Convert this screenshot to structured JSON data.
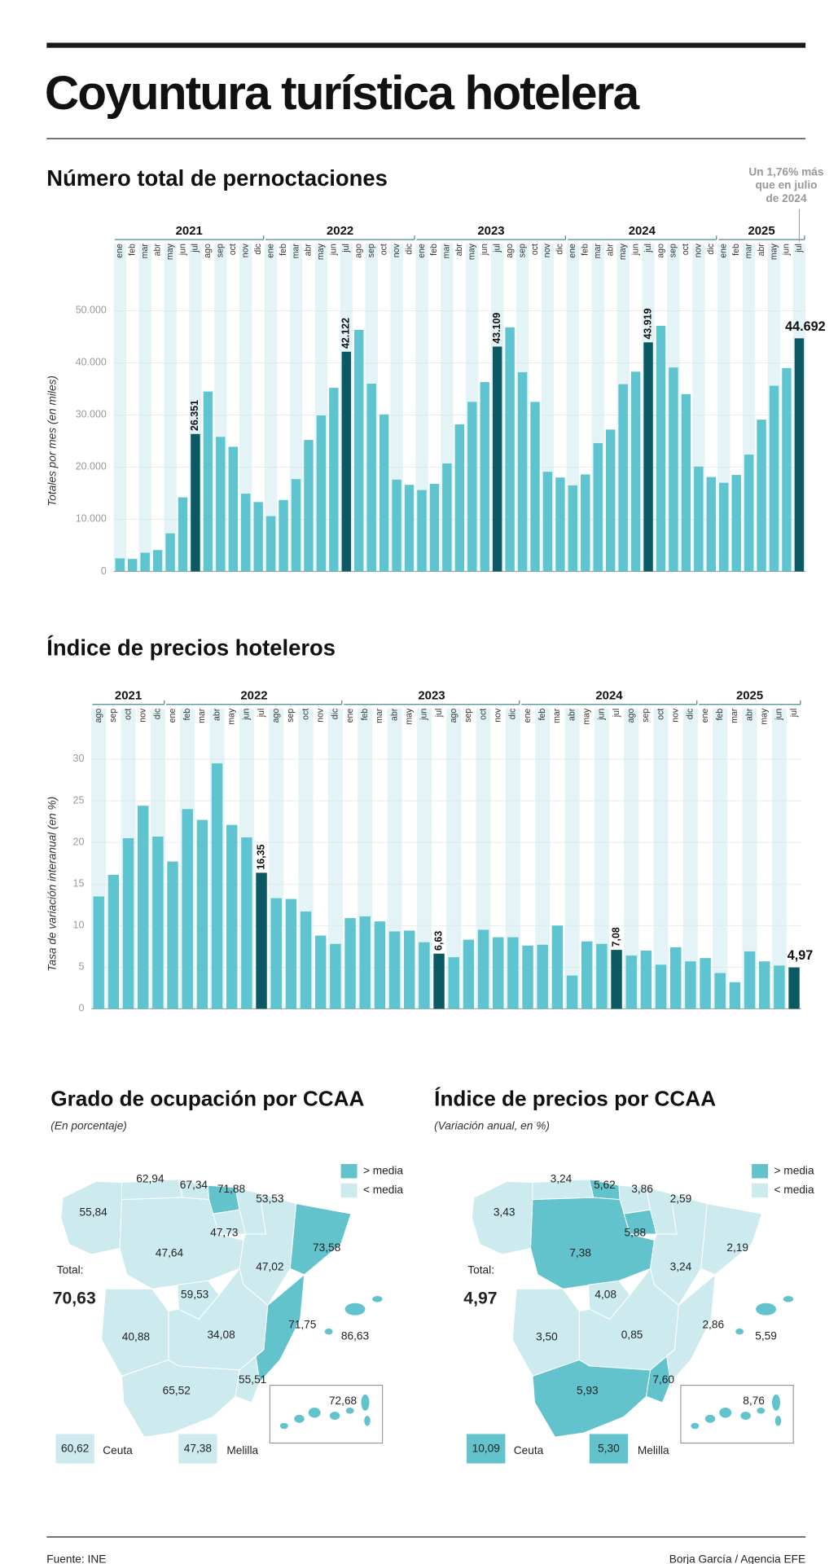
{
  "title": "Coyuntura turística hotelera",
  "chart_data": [
    {
      "type": "bar",
      "title": "Número total de pernoctaciones",
      "y_label": "Totales por mes (en miles)",
      "annotation": [
        "Un 1,76% más",
        "que en julio",
        "de 2024"
      ],
      "color": "#5ec4cf",
      "highlight_color": "#0b5a63",
      "grid": true,
      "ylim": [
        0,
        50000
      ],
      "yticks": [
        0,
        {
          "value": 10000,
          "label": "10.000"
        },
        {
          "value": 20000,
          "label": "20.000"
        },
        {
          "value": 30000,
          "label": "30.000"
        },
        {
          "value": 40000,
          "label": "40.000"
        },
        {
          "value": 50000,
          "label": "50.000"
        }
      ],
      "groups": [
        {
          "name": "2021",
          "categories": [
            "ene",
            "feb",
            "mar",
            "abr",
            "may",
            "jun",
            "jul",
            "ago",
            "sep",
            "oct",
            "nov",
            "dic"
          ],
          "values": [
            2500,
            2400,
            3600,
            4100,
            7300,
            14200,
            26351,
            34500,
            25800,
            23900,
            14900,
            13300
          ],
          "value_labels": [
            null,
            null,
            null,
            null,
            null,
            null,
            "26.351",
            null,
            null,
            null,
            null,
            null
          ]
        },
        {
          "name": "2022",
          "categories": [
            "ene",
            "feb",
            "mar",
            "abr",
            "may",
            "jun",
            "jul",
            "ago",
            "sep",
            "oct",
            "nov",
            "dic"
          ],
          "values": [
            10600,
            13700,
            17700,
            25200,
            29900,
            35200,
            42122,
            46300,
            36000,
            30100,
            17600,
            16600
          ],
          "value_labels": [
            null,
            null,
            null,
            null,
            null,
            null,
            "42.122",
            null,
            null,
            null,
            null,
            null
          ]
        },
        {
          "name": "2023",
          "categories": [
            "ene",
            "feb",
            "mar",
            "abr",
            "may",
            "jun",
            "jul",
            "ago",
            "sep",
            "oct",
            "nov",
            "dic"
          ],
          "values": [
            15600,
            16800,
            20700,
            28200,
            32500,
            36300,
            43109,
            46800,
            38200,
            32500,
            19100,
            18000
          ],
          "value_labels": [
            null,
            null,
            null,
            null,
            null,
            null,
            "43.109",
            null,
            null,
            null,
            null,
            null
          ]
        },
        {
          "name": "2024",
          "categories": [
            "ene",
            "feb",
            "mar",
            "abr",
            "may",
            "jun",
            "jul",
            "ago",
            "sep",
            "oct",
            "nov",
            "dic"
          ],
          "values": [
            16500,
            18600,
            24600,
            27200,
            35900,
            38300,
            43919,
            47100,
            39100,
            34000,
            20100,
            18100
          ],
          "value_labels": [
            null,
            null,
            null,
            null,
            null,
            null,
            "43.919",
            null,
            null,
            null,
            null,
            null
          ]
        },
        {
          "name": "2025",
          "categories": [
            "ene",
            "feb",
            "mar",
            "abr",
            "may",
            "jun",
            "jul"
          ],
          "values": [
            17000,
            18500,
            22400,
            29100,
            35600,
            39000,
            44692
          ],
          "value_labels": [
            null,
            null,
            null,
            null,
            null,
            null,
            "44.692"
          ]
        }
      ]
    },
    {
      "type": "bar",
      "title": "Índice de precios hoteleros",
      "y_label": "Tasa de variación interanual (en %)",
      "color": "#5ec4cf",
      "highlight_color": "#0b5a63",
      "grid": true,
      "ylim": [
        0,
        30
      ],
      "yticks": [
        0,
        5,
        10,
        15,
        20,
        25,
        30
      ],
      "groups": [
        {
          "name": "2021",
          "categories": [
            "ago",
            "sep",
            "oct",
            "nov",
            "dic"
          ],
          "values": [
            13.5,
            16.1,
            20.5,
            24.4,
            20.7
          ],
          "value_labels": [
            null,
            null,
            null,
            null,
            null
          ]
        },
        {
          "name": "2022",
          "categories": [
            "ene",
            "feb",
            "mar",
            "abr",
            "may",
            "jun",
            "jul",
            "ago",
            "sep",
            "oct",
            "nov",
            "dic"
          ],
          "values": [
            17.7,
            24.0,
            22.7,
            29.5,
            22.1,
            20.6,
            16.35,
            13.3,
            13.2,
            11.7,
            8.8,
            7.8
          ],
          "value_labels": [
            null,
            null,
            null,
            null,
            null,
            null,
            "16,35",
            null,
            null,
            null,
            null,
            null
          ]
        },
        {
          "name": "2023",
          "categories": [
            "ene",
            "feb",
            "mar",
            "abr",
            "may",
            "jun",
            "jul",
            "ago",
            "sep",
            "oct",
            "nov",
            "dic"
          ],
          "values": [
            10.9,
            11.1,
            10.5,
            9.3,
            9.4,
            8.0,
            6.63,
            6.2,
            8.3,
            9.5,
            8.6,
            8.6
          ],
          "value_labels": [
            null,
            null,
            null,
            null,
            null,
            null,
            "6,63",
            null,
            null,
            null,
            null,
            null
          ]
        },
        {
          "name": "2024",
          "categories": [
            "ene",
            "feb",
            "mar",
            "abr",
            "may",
            "jun",
            "jul",
            "ago",
            "sep",
            "oct",
            "nov",
            "dic"
          ],
          "values": [
            7.6,
            7.7,
            10.0,
            4.0,
            8.1,
            7.8,
            7.08,
            6.4,
            7.0,
            5.3,
            7.4,
            5.7
          ],
          "value_labels": [
            null,
            null,
            null,
            null,
            null,
            null,
            "7,08",
            null,
            null,
            null,
            null,
            null
          ]
        },
        {
          "name": "2025",
          "categories": [
            "ene",
            "feb",
            "mar",
            "abr",
            "may",
            "jun",
            "jul"
          ],
          "values": [
            6.1,
            4.3,
            3.2,
            6.9,
            5.7,
            5.2,
            4.97
          ],
          "value_labels": [
            null,
            null,
            null,
            null,
            null,
            null,
            "4,97"
          ]
        }
      ]
    }
  ],
  "maps": [
    {
      "title": "Grado de ocupación por CCAA",
      "subtitle": "(En porcentaje)",
      "legend": [
        "> media",
        "< media"
      ],
      "above_color": "#62c3cc",
      "below_color": "#cdebef",
      "total_label": "Total:",
      "total": "70,63",
      "regions": [
        {
          "value": "62,94",
          "above": false
        },
        {
          "value": "67,34",
          "above": false
        },
        {
          "value": "71,88",
          "above": true
        },
        {
          "value": "53,53",
          "above": false
        },
        {
          "value": "55,84",
          "above": false
        },
        {
          "value": "47,64",
          "above": false
        },
        {
          "value": "47,73",
          "above": false
        },
        {
          "value": "47,02",
          "above": false
        },
        {
          "value": "73,58",
          "above": true
        },
        {
          "value": "59,53",
          "above": false
        },
        {
          "value": "34,08",
          "above": false
        },
        {
          "value": "40,88",
          "above": false
        },
        {
          "value": "71,75",
          "above": true
        },
        {
          "value": "86,63",
          "above": true
        },
        {
          "value": "65,52",
          "above": false
        },
        {
          "value": "55,51",
          "above": false
        },
        {
          "value": "72,68",
          "above": true
        }
      ],
      "ceuta": {
        "name": "Ceuta",
        "value": "60,62",
        "above": false
      },
      "melilla": {
        "name": "Melilla",
        "value": "47,38",
        "above": false
      }
    },
    {
      "title": "Índice de precios por CCAA",
      "subtitle": "(Variación anual, en %)",
      "legend": [
        "> media",
        "< media"
      ],
      "above_color": "#62c3cc",
      "below_color": "#cdebef",
      "total_label": "Total:",
      "total": "4,97",
      "regions": [
        {
          "value": "3,24",
          "above": false
        },
        {
          "value": "5,62",
          "above": true
        },
        {
          "value": "3,86",
          "above": false
        },
        {
          "value": "2,59",
          "above": false
        },
        {
          "value": "3,43",
          "above": false
        },
        {
          "value": "7,38",
          "above": true
        },
        {
          "value": "5,88",
          "above": true
        },
        {
          "value": "3,24",
          "above": false
        },
        {
          "value": "2,19",
          "above": false
        },
        {
          "value": "4,08",
          "above": false
        },
        {
          "value": "0,85",
          "above": false
        },
        {
          "value": "3,50",
          "above": false
        },
        {
          "value": "2,86",
          "above": false
        },
        {
          "value": "5,59",
          "above": true
        },
        {
          "value": "5,93",
          "above": true
        },
        {
          "value": "7,60",
          "above": true
        },
        {
          "value": "8,76",
          "above": true
        }
      ],
      "ceuta": {
        "name": "Ceuta",
        "value": "10,09",
        "above": true
      },
      "melilla": {
        "name": "Melilla",
        "value": "5,30",
        "above": true
      }
    }
  ],
  "footer": {
    "source": "Fuente: INE",
    "credit": "Borja García / Agencia EFE"
  }
}
